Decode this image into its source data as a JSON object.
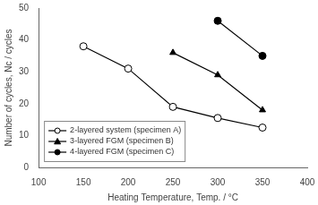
{
  "chart_data": {
    "type": "line",
    "xlabel": "Heating Temperature, Temp. / °C",
    "ylabel": "Number of cycles, Nc / cycles",
    "series": [
      {
        "name": "2-layered system (specimen A)",
        "color": "black",
        "marker": "circle-open",
        "line_style": "solid",
        "x": [
          150,
          200,
          250,
          300,
          350
        ],
        "values": [
          38,
          31,
          19,
          15.5,
          12.5
        ]
      },
      {
        "name": "3-layered FGM (specimen B)",
        "color": "black",
        "marker": "triangle",
        "line_style": "solid",
        "x": [
          250,
          300,
          350
        ],
        "values": [
          36,
          29,
          18
        ]
      },
      {
        "name": "4-layered FGM (specimen C)",
        "color": "black",
        "marker": "circle",
        "line_style": "solid",
        "x": [
          300,
          350
        ],
        "values": [
          46,
          35
        ]
      }
    ],
    "xlim": [
      100,
      400
    ],
    "ylim": [
      0,
      50
    ],
    "xticks": [
      100,
      150,
      200,
      250,
      300,
      350,
      400
    ],
    "yticks": [
      0,
      10,
      20,
      30,
      40,
      50
    ],
    "grid": false,
    "legend": "lower left"
  }
}
